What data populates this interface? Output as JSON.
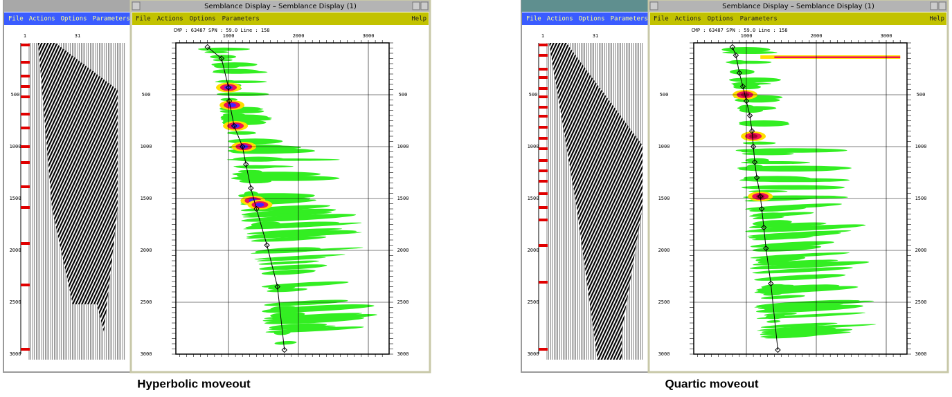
{
  "panels": [
    {
      "gather_window": {
        "menu": [
          "File",
          "Actions",
          "Options",
          "Parameters"
        ],
        "trace_labels": [
          "1",
          "31"
        ],
        "time_labels": [
          "500",
          "1000",
          "1500",
          "2000",
          "2500",
          "3000"
        ]
      },
      "semblance_window": {
        "title": "Semblance Display – Semblance Display (1)",
        "menu": [
          "File",
          "Actions",
          "Options",
          "Parameters"
        ],
        "help": "Help",
        "info": "CMP : 63487 SPN : 59.0 Line : 158",
        "velocity_labels": [
          "1000",
          "2000",
          "3000"
        ],
        "time_labels": [
          "500",
          "1000",
          "1500",
          "2000",
          "2500",
          "3000"
        ]
      },
      "caption": "Hyperbolic moveout"
    },
    {
      "gather_window": {
        "menu": [
          "File",
          "Actions",
          "Options",
          "Parameters"
        ],
        "trace_labels": [
          "1",
          "31"
        ],
        "time_labels": [
          "500",
          "1000",
          "1500",
          "2000",
          "2500",
          "3000"
        ]
      },
      "semblance_window": {
        "title": "Semblance Display – Semblance Display (1)",
        "menu": [
          "File",
          "Actions",
          "Options",
          "Parameters"
        ],
        "help": "Help",
        "info": "CMP : 63487 SPN : 59.0 Line : 158",
        "velocity_labels": [
          "1000",
          "2000",
          "3000"
        ],
        "time_labels": [
          "500",
          "1000",
          "1500",
          "2000",
          "2500",
          "3000"
        ]
      },
      "caption": "Quartic moveout"
    }
  ]
}
